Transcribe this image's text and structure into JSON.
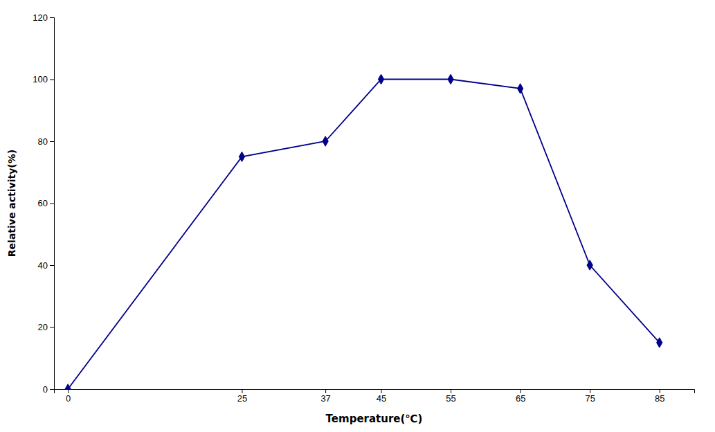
{
  "chart_data": {
    "type": "line",
    "x": [
      0,
      25,
      37,
      45,
      55,
      65,
      75,
      85
    ],
    "values": [
      0,
      75,
      80,
      100,
      100,
      97,
      40,
      15
    ],
    "color": "#00008B",
    "marker": "diamond",
    "xlabel": "Temperature(℃)",
    "ylabel": "Relative activity(%)",
    "xlim": [
      -2,
      90
    ],
    "ylim": [
      0,
      120
    ],
    "xticks": [
      0,
      25,
      37,
      45,
      55,
      65,
      75,
      85
    ],
    "yticks": [
      0,
      20,
      40,
      60,
      80,
      100,
      120
    ],
    "grid": false
  }
}
